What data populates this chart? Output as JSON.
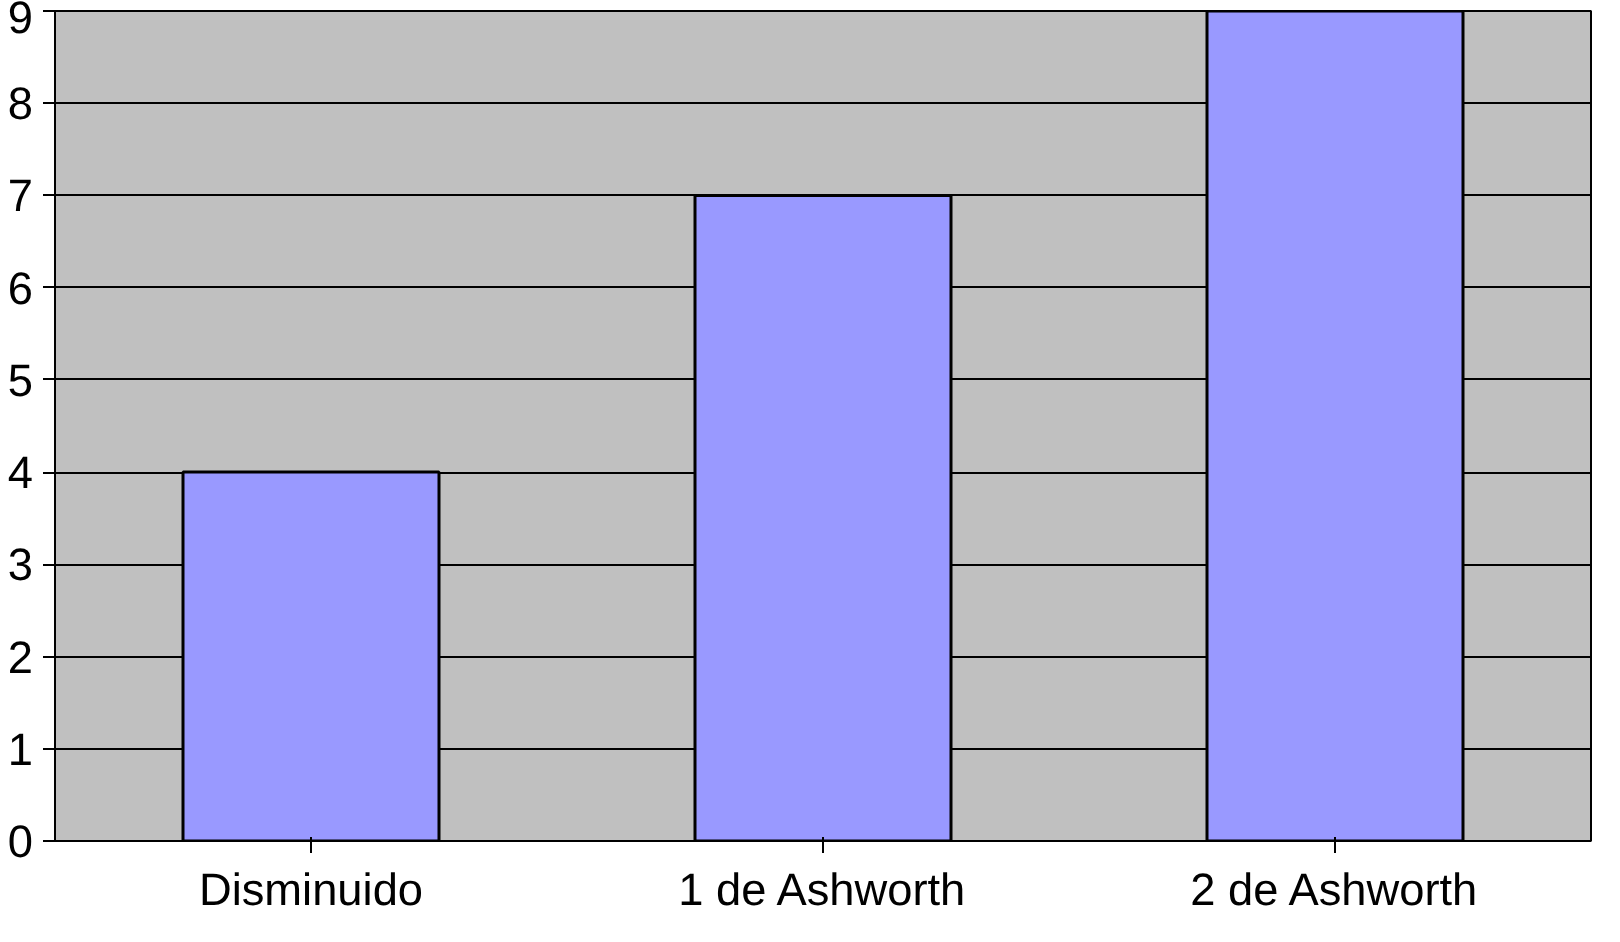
{
  "chart_data": {
    "type": "bar",
    "categories": [
      "Disminuido",
      "1 de Ashworth",
      "2 de Ashworth"
    ],
    "values": [
      4,
      7,
      9
    ],
    "color": "#9999ff",
    "ylim": [
      0,
      9
    ],
    "yticks": [
      0,
      1,
      2,
      3,
      4,
      5,
      6,
      7,
      8,
      9
    ],
    "grid": "y"
  }
}
